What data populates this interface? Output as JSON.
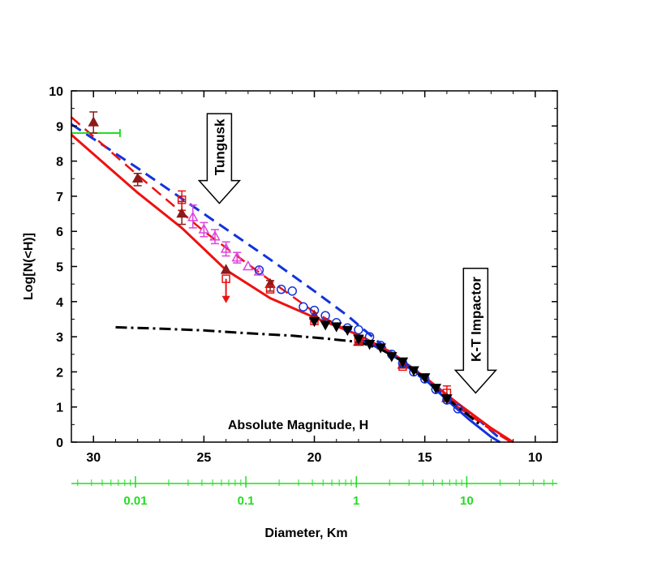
{
  "chart_data": {
    "type": "scatter",
    "ylabel": "Log[N(<H)]",
    "xlabel": "Absolute Magnitude, H",
    "secondary_xlabel": "Diameter, Km",
    "xlim": [
      31,
      9
    ],
    "ylim": [
      0,
      10
    ],
    "x_ticks": [
      30,
      25,
      20,
      15,
      10
    ],
    "y_ticks": [
      0,
      1,
      2,
      3,
      4,
      5,
      6,
      7,
      8,
      9,
      10
    ],
    "secondary_ticks": [
      "0.01",
      "0.1",
      "1",
      "10"
    ],
    "secondary_tick_H": [
      28.1,
      23.1,
      18.1,
      13.1
    ],
    "grid": false,
    "colors": {
      "blue": "#1133dd",
      "red": "#ee1111",
      "darkred": "#8b1a1a",
      "magenta": "#dd44dd",
      "green": "#22dd22",
      "black": "#000000"
    },
    "annotations": [
      {
        "text": "Tungusk",
        "H": 24.3,
        "y_top": 9.35,
        "y_bottom": 6.8
      },
      {
        "text": "K-T Impactor",
        "H": 12.7,
        "y_top": 4.95,
        "y_bottom": 1.4
      }
    ],
    "series": [
      {
        "style": "dashed",
        "color": "blue",
        "points": [
          [
            31,
            9.05
          ],
          [
            28,
            7.8
          ],
          [
            25,
            6.5
          ],
          [
            22,
            5.2
          ],
          [
            20,
            4.3
          ],
          [
            18.5,
            3.6
          ],
          [
            17,
            2.8
          ],
          [
            15.5,
            2.0
          ],
          [
            14,
            1.3
          ],
          [
            12.5,
            0.6
          ],
          [
            11.5,
            0.05
          ]
        ]
      },
      {
        "style": "dashed",
        "color": "red",
        "points": [
          [
            31,
            9.25
          ],
          [
            28,
            7.6
          ],
          [
            25,
            6.0
          ],
          [
            22,
            4.6
          ],
          [
            20,
            3.7
          ],
          [
            18,
            3.0
          ],
          [
            16.5,
            2.5
          ],
          [
            15,
            1.85
          ],
          [
            13.5,
            1.0
          ],
          [
            12,
            0.35
          ],
          [
            11.1,
            0.0
          ]
        ]
      },
      {
        "style": "solid",
        "color": "red",
        "points": [
          [
            31,
            8.75
          ],
          [
            28,
            7.1
          ],
          [
            26,
            6.1
          ],
          [
            24,
            4.9
          ],
          [
            22,
            4.1
          ],
          [
            20,
            3.55
          ],
          [
            18,
            3.05
          ],
          [
            16.5,
            2.55
          ],
          [
            15,
            1.85
          ],
          [
            13.5,
            1.1
          ],
          [
            12,
            0.4
          ],
          [
            11,
            0.0
          ]
        ]
      },
      {
        "style": "solid",
        "color": "blue",
        "points": [
          [
            18,
            2.95
          ],
          [
            17,
            2.65
          ],
          [
            16,
            2.3
          ],
          [
            15,
            1.8
          ],
          [
            14,
            1.2
          ],
          [
            13,
            0.65
          ],
          [
            12,
            0.15
          ],
          [
            11.6,
            0.0
          ]
        ]
      },
      {
        "style": "dashdot",
        "color": "black",
        "points": [
          [
            29,
            3.27
          ],
          [
            27,
            3.23
          ],
          [
            25,
            3.18
          ],
          [
            23,
            3.1
          ],
          [
            21,
            3.03
          ],
          [
            19.5,
            2.95
          ],
          [
            18,
            2.85
          ],
          [
            17,
            2.65
          ],
          [
            16,
            2.3
          ],
          [
            15,
            1.8
          ],
          [
            14,
            1.25
          ],
          [
            13,
            0.75
          ],
          [
            12.5,
            0.5
          ]
        ]
      }
    ],
    "points": [
      {
        "marker": "triangle-up",
        "color": "darkred",
        "filled": true,
        "data": [
          [
            30,
            9.1
          ],
          [
            28,
            7.5
          ],
          [
            26,
            6.5
          ],
          [
            24,
            4.9
          ],
          [
            22,
            4.5
          ],
          [
            20,
            3.6
          ],
          [
            18,
            2.85
          ],
          [
            16,
            2.2
          ],
          [
            14,
            1.25
          ]
        ]
      },
      {
        "marker": "square",
        "color": "red",
        "filled": false,
        "data": [
          [
            26,
            6.9
          ],
          [
            24,
            4.65
          ],
          [
            22,
            4.35
          ],
          [
            20,
            3.45
          ],
          [
            18,
            2.9
          ],
          [
            16,
            2.15
          ],
          [
            14,
            1.4
          ]
        ]
      },
      {
        "marker": "triangle-up",
        "color": "magenta",
        "filled": false,
        "data": [
          [
            25.5,
            6.4
          ],
          [
            25,
            6.05
          ],
          [
            24.5,
            5.85
          ],
          [
            24,
            5.5
          ],
          [
            23.5,
            5.25
          ],
          [
            23,
            5.0
          ],
          [
            22.5,
            4.85
          ]
        ]
      },
      {
        "marker": "circle",
        "color": "blue",
        "filled": false,
        "data": [
          [
            22.5,
            4.9
          ],
          [
            21.5,
            4.35
          ],
          [
            21,
            4.3
          ],
          [
            20.5,
            3.85
          ],
          [
            20,
            3.75
          ],
          [
            19.5,
            3.6
          ],
          [
            19,
            3.4
          ],
          [
            18.5,
            3.25
          ],
          [
            18,
            3.2
          ],
          [
            17.5,
            3.0
          ],
          [
            17,
            2.75
          ],
          [
            16.5,
            2.5
          ],
          [
            16,
            2.25
          ],
          [
            15.5,
            2.0
          ],
          [
            15,
            1.8
          ],
          [
            14.5,
            1.5
          ],
          [
            14,
            1.2
          ],
          [
            13.5,
            0.95
          ]
        ]
      },
      {
        "marker": "triangle-down",
        "color": "black",
        "filled": true,
        "data": [
          [
            20,
            3.45
          ],
          [
            19.5,
            3.35
          ],
          [
            19,
            3.3
          ],
          [
            18.5,
            3.2
          ],
          [
            18,
            2.95
          ],
          [
            17.5,
            2.8
          ],
          [
            17,
            2.7
          ],
          [
            16.5,
            2.45
          ],
          [
            16,
            2.3
          ],
          [
            15.5,
            2.05
          ],
          [
            15,
            1.85
          ],
          [
            14.5,
            1.55
          ],
          [
            14,
            1.25
          ]
        ]
      }
    ],
    "error_bars": [
      {
        "color": "darkred",
        "H": 30,
        "low": 8.8,
        "high": 9.4
      },
      {
        "color": "darkred",
        "H": 28,
        "low": 7.3,
        "high": 7.65
      },
      {
        "color": "darkred",
        "H": 26,
        "low": 6.2,
        "high": 6.85
      },
      {
        "color": "darkred",
        "H": 22,
        "low": 4.3,
        "high": 4.6
      },
      {
        "color": "red",
        "H": 26,
        "low": 6.6,
        "high": 7.15
      },
      {
        "color": "magenta",
        "H": 25.5,
        "low": 6.1,
        "high": 6.75
      },
      {
        "color": "magenta",
        "H": 25,
        "low": 5.85,
        "high": 6.25
      },
      {
        "color": "magenta",
        "H": 24.5,
        "low": 5.65,
        "high": 6.05
      },
      {
        "color": "magenta",
        "H": 24,
        "low": 5.3,
        "high": 5.7
      },
      {
        "color": "magenta",
        "H": 23.5,
        "low": 5.1,
        "high": 5.4
      },
      {
        "color": "red",
        "H": 14,
        "low": 1.2,
        "high": 1.6
      }
    ],
    "upper_limit_arrow": {
      "color": "red",
      "H": 24,
      "from": 4.65,
      "to": 4.0
    },
    "green_bar": {
      "y": 8.8,
      "H_from": 31,
      "H_to": 28.8
    }
  }
}
